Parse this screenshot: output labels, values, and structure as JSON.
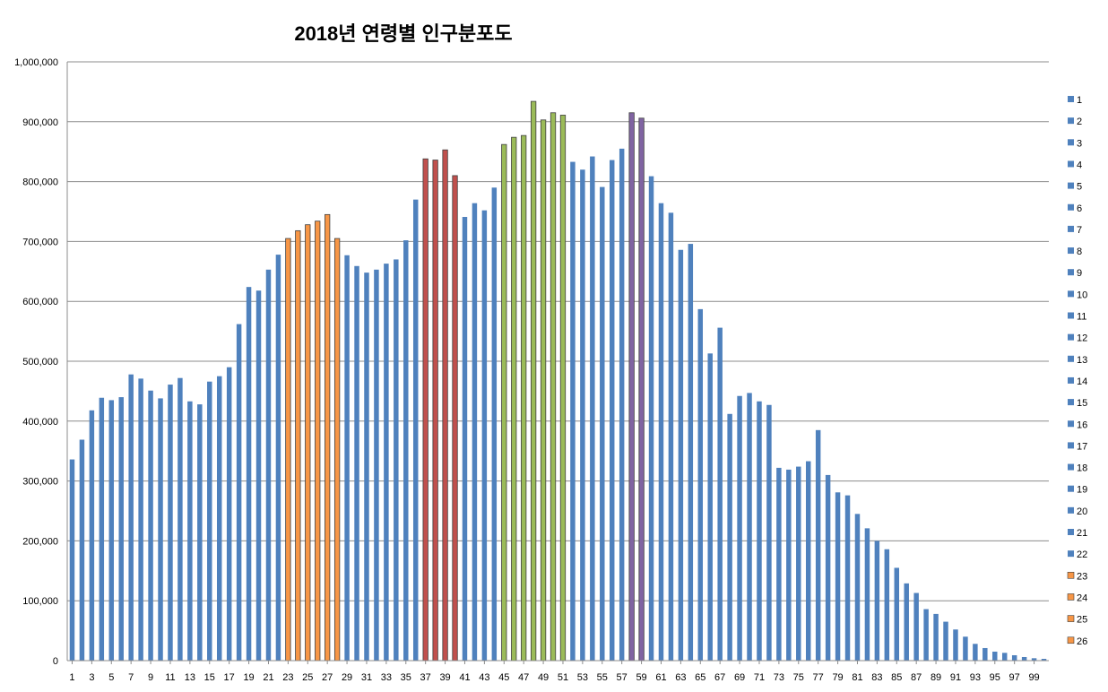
{
  "chart_data": {
    "type": "bar",
    "title": "2018년 연령별 인구분포도",
    "xlabel": "",
    "ylabel": "",
    "ylim": [
      0,
      1000000
    ],
    "yticks": [
      "0",
      "100,000",
      "200,000",
      "300,000",
      "400,000",
      "500,000",
      "600,000",
      "700,000",
      "800,000",
      "900,000",
      "1,000,000"
    ],
    "grid": true,
    "legend_position": "right",
    "x": [
      1,
      2,
      3,
      4,
      5,
      6,
      7,
      8,
      9,
      10,
      11,
      12,
      13,
      14,
      15,
      16,
      17,
      18,
      19,
      20,
      21,
      22,
      23,
      24,
      25,
      26,
      27,
      28,
      29,
      30,
      31,
      32,
      33,
      34,
      35,
      36,
      37,
      38,
      39,
      40,
      41,
      42,
      43,
      44,
      45,
      46,
      47,
      48,
      49,
      50,
      51,
      52,
      53,
      54,
      55,
      56,
      57,
      58,
      59,
      60,
      61,
      62,
      63,
      64,
      65,
      66,
      67,
      68,
      69,
      70,
      71,
      72,
      73,
      74,
      75,
      76,
      77,
      78,
      79,
      80,
      81,
      82,
      83,
      84,
      85,
      86,
      87,
      88,
      89,
      90,
      91,
      92,
      93,
      94,
      95,
      96,
      97,
      98,
      99,
      100
    ],
    "xtick_labels": [
      "1",
      "3",
      "5",
      "7",
      "9",
      "11",
      "13",
      "15",
      "17",
      "19",
      "21",
      "23",
      "25",
      "27",
      "29",
      "31",
      "33",
      "35",
      "37",
      "39",
      "41",
      "43",
      "45",
      "47",
      "49",
      "51",
      "53",
      "55",
      "57",
      "59",
      "61",
      "63",
      "65",
      "67",
      "69",
      "71",
      "73",
      "75",
      "77",
      "79",
      "81",
      "83",
      "85",
      "87",
      "89",
      "91",
      "93",
      "95",
      "97",
      "99"
    ],
    "values": [
      336000,
      369000,
      418000,
      439000,
      435000,
      440000,
      478000,
      471000,
      451000,
      438000,
      461000,
      472000,
      433000,
      428000,
      466000,
      475000,
      490000,
      562000,
      624000,
      618000,
      653000,
      678000,
      705000,
      718000,
      728000,
      734000,
      745000,
      705000,
      677000,
      659000,
      648000,
      653000,
      663000,
      670000,
      702000,
      770000,
      838000,
      836000,
      853000,
      810000,
      741000,
      764000,
      752000,
      790000,
      862000,
      874000,
      877000,
      934000,
      903000,
      915000,
      911000,
      833000,
      820000,
      842000,
      791000,
      836000,
      855000,
      915000,
      906000,
      809000,
      764000,
      748000,
      686000,
      696000,
      587000,
      513000,
      556000,
      412000,
      442000,
      447000,
      433000,
      427000,
      322000,
      319000,
      324000,
      333000,
      385000,
      310000,
      281000,
      276000,
      245000,
      221000,
      200000,
      186000,
      155000,
      129000,
      113000,
      86000,
      78000,
      65000,
      52000,
      40000,
      28000,
      21000,
      15000,
      13000,
      9000,
      6000,
      4000,
      3000
    ],
    "highlight_colors": {
      "default": "#4F81BD",
      "orange": "#F79646",
      "red": "#C0504D",
      "green": "#9BBB59",
      "purple": "#8064A2"
    },
    "bar_colors": [
      "default",
      "default",
      "default",
      "default",
      "default",
      "default",
      "default",
      "default",
      "default",
      "default",
      "default",
      "default",
      "default",
      "default",
      "default",
      "default",
      "default",
      "default",
      "default",
      "default",
      "default",
      "default",
      "orange",
      "orange",
      "orange",
      "orange",
      "orange",
      "orange",
      "default",
      "default",
      "default",
      "default",
      "default",
      "default",
      "default",
      "default",
      "red",
      "red",
      "red",
      "red",
      "default",
      "default",
      "default",
      "default",
      "green",
      "green",
      "green",
      "green",
      "green",
      "green",
      "green",
      "default",
      "default",
      "default",
      "default",
      "default",
      "default",
      "purple",
      "purple",
      "default",
      "default",
      "default",
      "default",
      "default",
      "default",
      "default",
      "default",
      "default",
      "default",
      "default",
      "default",
      "default",
      "default",
      "default",
      "default",
      "default",
      "default",
      "default",
      "default",
      "default",
      "default",
      "default",
      "default",
      "default",
      "default",
      "default",
      "default",
      "default",
      "default",
      "default",
      "default",
      "default",
      "default",
      "default",
      "default",
      "default",
      "default",
      "default",
      "default",
      "default"
    ],
    "legend": [
      {
        "name": "1",
        "color": "default"
      },
      {
        "name": "2",
        "color": "default"
      },
      {
        "name": "3",
        "color": "default"
      },
      {
        "name": "4",
        "color": "default"
      },
      {
        "name": "5",
        "color": "default"
      },
      {
        "name": "6",
        "color": "default"
      },
      {
        "name": "7",
        "color": "default"
      },
      {
        "name": "8",
        "color": "default"
      },
      {
        "name": "9",
        "color": "default"
      },
      {
        "name": "10",
        "color": "default"
      },
      {
        "name": "11",
        "color": "default"
      },
      {
        "name": "12",
        "color": "default"
      },
      {
        "name": "13",
        "color": "default"
      },
      {
        "name": "14",
        "color": "default"
      },
      {
        "name": "15",
        "color": "default"
      },
      {
        "name": "16",
        "color": "default"
      },
      {
        "name": "17",
        "color": "default"
      },
      {
        "name": "18",
        "color": "default"
      },
      {
        "name": "19",
        "color": "default"
      },
      {
        "name": "20",
        "color": "default"
      },
      {
        "name": "21",
        "color": "default"
      },
      {
        "name": "22",
        "color": "default"
      },
      {
        "name": "23",
        "color": "orange"
      },
      {
        "name": "24",
        "color": "orange"
      },
      {
        "name": "25",
        "color": "orange"
      },
      {
        "name": "26",
        "color": "orange"
      }
    ]
  }
}
